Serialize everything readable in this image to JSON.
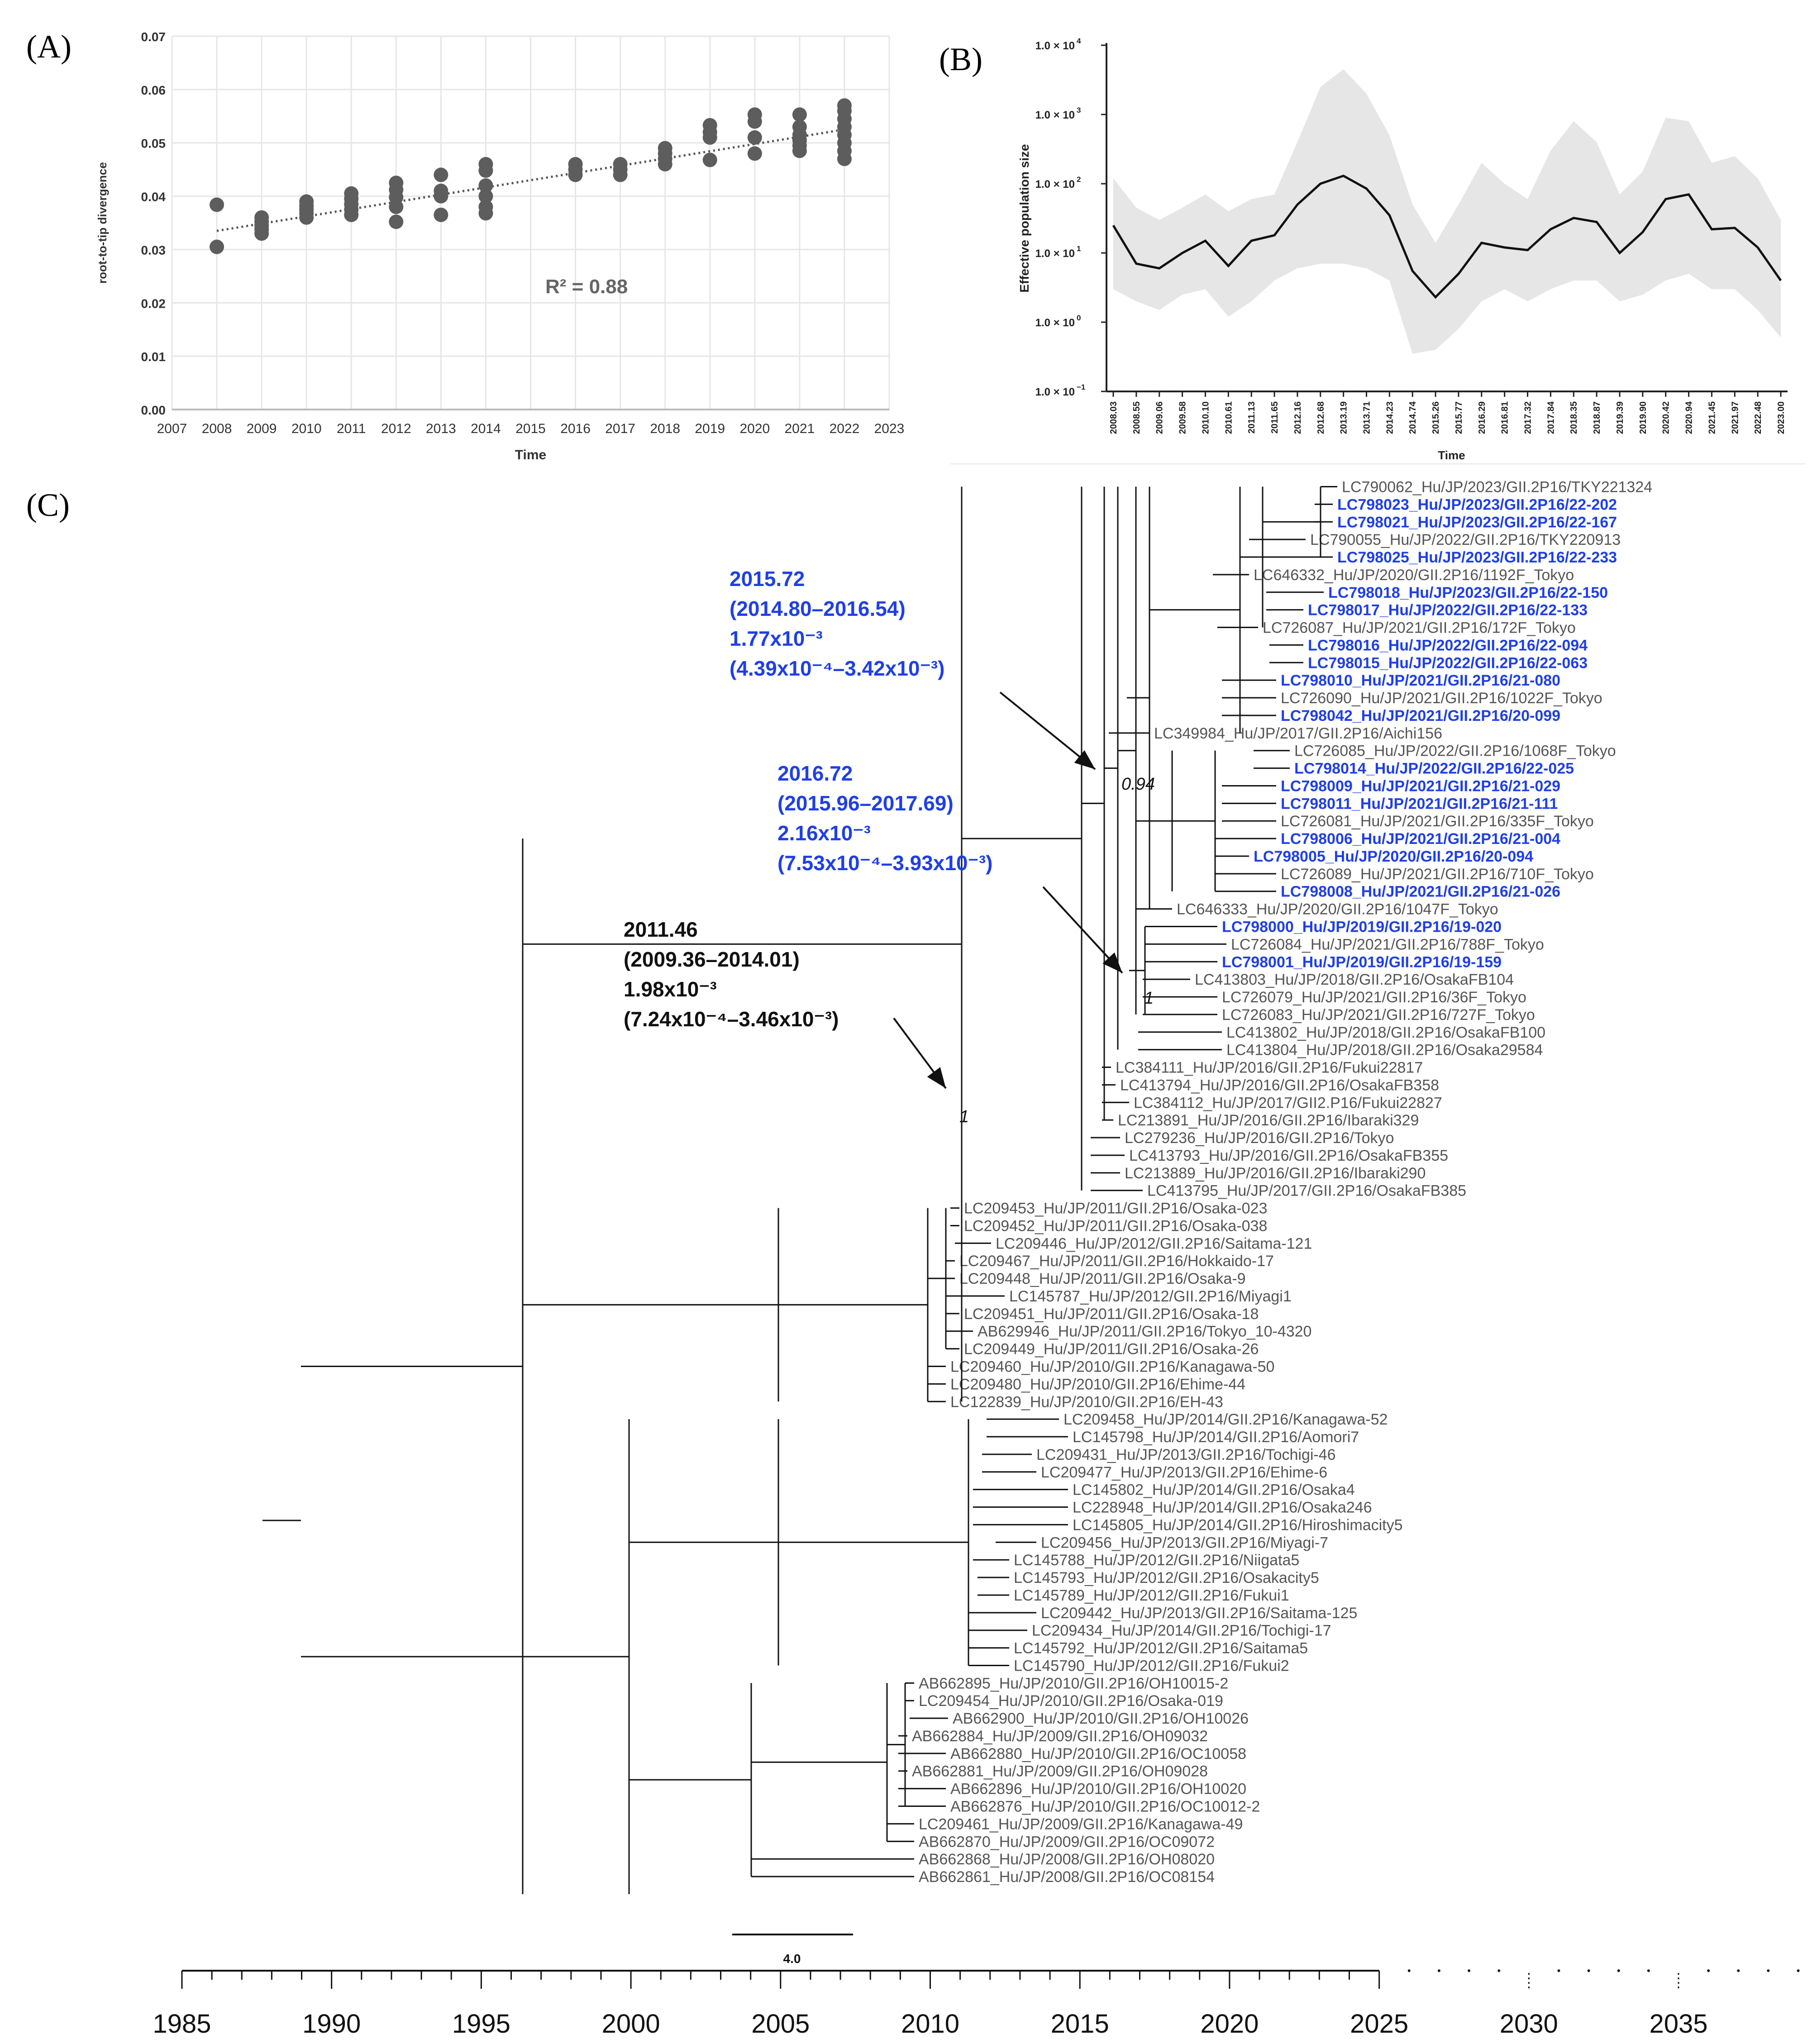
{
  "panel_labels": {
    "a": "(A)",
    "b": "(B)",
    "c": "(C)"
  },
  "chart_data": [
    {
      "panel": "A",
      "type": "scatter",
      "xlabel": "Time",
      "ylabel": "root-to-tip divergence",
      "annotation": "R² = 0.88",
      "xlim": [
        2007,
        2023
      ],
      "ylim": [
        0,
        0.07
      ],
      "xticks": [
        2007,
        2008,
        2009,
        2010,
        2011,
        2012,
        2013,
        2014,
        2015,
        2016,
        2017,
        2018,
        2019,
        2020,
        2021,
        2022,
        2023
      ],
      "yticks": [
        0.0,
        0.01,
        0.02,
        0.03,
        0.04,
        0.05,
        0.06,
        0.07
      ],
      "ytick_labels": [
        "0.00",
        "0.01",
        "0.02",
        "0.03",
        "0.04",
        "0.05",
        "0.06",
        "0.07"
      ],
      "trendline": [
        [
          2008,
          0.0335
        ],
        [
          2022,
          0.0525
        ]
      ],
      "points": [
        [
          2008,
          0.0384
        ],
        [
          2008,
          0.0305
        ],
        [
          2009,
          0.036
        ],
        [
          2009,
          0.0352
        ],
        [
          2009,
          0.0345
        ],
        [
          2009,
          0.0338
        ],
        [
          2009,
          0.033
        ],
        [
          2010,
          0.039
        ],
        [
          2010,
          0.0382
        ],
        [
          2010,
          0.0375
        ],
        [
          2010,
          0.0368
        ],
        [
          2010,
          0.036
        ],
        [
          2011,
          0.0405
        ],
        [
          2011,
          0.0395
        ],
        [
          2011,
          0.0385
        ],
        [
          2011,
          0.0375
        ],
        [
          2011,
          0.0365
        ],
        [
          2012,
          0.0425
        ],
        [
          2012,
          0.0412
        ],
        [
          2012,
          0.0398
        ],
        [
          2012,
          0.038
        ],
        [
          2012,
          0.0352
        ],
        [
          2013,
          0.044
        ],
        [
          2013,
          0.041
        ],
        [
          2013,
          0.04
        ],
        [
          2013,
          0.0365
        ],
        [
          2014,
          0.046
        ],
        [
          2014,
          0.0448
        ],
        [
          2014,
          0.042
        ],
        [
          2014,
          0.04
        ],
        [
          2014,
          0.038
        ],
        [
          2014,
          0.0368
        ],
        [
          2016,
          0.046
        ],
        [
          2016,
          0.045
        ],
        [
          2016,
          0.044
        ],
        [
          2017,
          0.046
        ],
        [
          2017,
          0.045
        ],
        [
          2017,
          0.044
        ],
        [
          2018,
          0.049
        ],
        [
          2018,
          0.048
        ],
        [
          2018,
          0.047
        ],
        [
          2018,
          0.046
        ],
        [
          2019,
          0.0533
        ],
        [
          2019,
          0.052
        ],
        [
          2019,
          0.051
        ],
        [
          2019,
          0.0468
        ],
        [
          2020,
          0.0553
        ],
        [
          2020,
          0.054
        ],
        [
          2020,
          0.051
        ],
        [
          2020,
          0.048
        ],
        [
          2021,
          0.0553
        ],
        [
          2021,
          0.053
        ],
        [
          2021,
          0.0515
        ],
        [
          2021,
          0.0505
        ],
        [
          2021,
          0.0495
        ],
        [
          2021,
          0.0485
        ],
        [
          2022,
          0.057
        ],
        [
          2022,
          0.056
        ],
        [
          2022,
          0.0545
        ],
        [
          2022,
          0.053
        ],
        [
          2022,
          0.0515
        ],
        [
          2022,
          0.05
        ],
        [
          2022,
          0.0485
        ],
        [
          2022,
          0.047
        ]
      ]
    },
    {
      "panel": "B",
      "type": "area",
      "xlabel": "Time",
      "ylabel": "Effective population size",
      "yscale": "log",
      "ylim": [
        0.1,
        10000
      ],
      "yticks": [
        0.1,
        1,
        10,
        100,
        1000,
        10000
      ],
      "ytick_mant": [
        "1.0 × 10",
        "1.0 × 10",
        "1.0 × 10",
        "1.0 × 10",
        "1.0 × 10",
        "1.0 × 10"
      ],
      "ytick_exp": [
        "−1",
        "0",
        "1",
        "2",
        "3",
        "4"
      ],
      "x_tick_labels": [
        "2008.03",
        "2008.55",
        "2009.06",
        "2009.58",
        "2010.10",
        "2010.61",
        "2011.13",
        "2011.65",
        "2012.16",
        "2012.68",
        "2013.19",
        "2013.71",
        "2014.23",
        "2014.74",
        "2015.26",
        "2015.77",
        "2016.29",
        "2016.81",
        "2017.32",
        "2017.84",
        "2018.35",
        "2018.87",
        "2019.39",
        "2019.90",
        "2020.42",
        "2020.94",
        "2021.45",
        "2021.97",
        "2022.48",
        "2023.00"
      ],
      "median": [
        25,
        7,
        6,
        10,
        15,
        6.5,
        15,
        18,
        50,
        100,
        130,
        85,
        35,
        5.5,
        2.3,
        5,
        14,
        12,
        11,
        22,
        32,
        28,
        10,
        20,
        60,
        70,
        22,
        23,
        12,
        4
      ],
      "lower": [
        3,
        2,
        1.5,
        2.5,
        3,
        1.2,
        2,
        4,
        6,
        7,
        7,
        6,
        4,
        0.35,
        0.4,
        0.8,
        2,
        3,
        2,
        3,
        4,
        4,
        2,
        2.5,
        4,
        5,
        3,
        3,
        1.5,
        0.6
      ],
      "upper": [
        120,
        45,
        30,
        45,
        70,
        40,
        60,
        70,
        400,
        2500,
        4500,
        2000,
        500,
        50,
        14,
        50,
        200,
        100,
        60,
        300,
        800,
        400,
        70,
        150,
        900,
        800,
        200,
        250,
        120,
        30
      ]
    },
    {
      "panel": "C",
      "type": "tree",
      "scale_bar_label": "4.0",
      "time_axis": {
        "ticks": [
          "1985",
          "1990",
          "1995",
          "2000",
          "2005",
          "2010",
          "2015",
          "2020",
          "2025",
          "2030",
          "2035"
        ]
      },
      "node_annotations": [
        {
          "lines": [
            "2015.72",
            "(2014.80–2016.54)",
            "1.77x10⁻³",
            "(4.39x10⁻⁴–3.42x10⁻³)"
          ],
          "color": "#1f3fe6"
        },
        {
          "lines": [
            "2016.72",
            "(2015.96–2017.69)",
            "2.16x10⁻³",
            "(7.53x10⁻⁴–3.93x10⁻³)"
          ],
          "color": "#1f3fe6"
        },
        {
          "lines": [
            "2011.46",
            "(2009.36–2014.01)",
            "1.98x10⁻³",
            "(7.24x10⁻⁴–3.46x10⁻³)"
          ],
          "color": "#111111"
        }
      ],
      "support_values": [
        "0.94",
        "1",
        "1"
      ],
      "tips": [
        {
          "label": "LC790062_Hu/JP/2023/GII.2P16/TKY221324",
          "blue": false
        },
        {
          "label": "LC798023_Hu/JP/2023/GII.2P16/22-202",
          "blue": true
        },
        {
          "label": "LC798021_Hu/JP/2023/GII.2P16/22-167",
          "blue": true
        },
        {
          "label": "LC790055_Hu/JP/2022/GII.2P16/TKY220913",
          "blue": false
        },
        {
          "label": "LC798025_Hu/JP/2023/GII.2P16/22-233",
          "blue": true
        },
        {
          "label": "LC646332_Hu/JP/2020/GII.2P16/1192F_Tokyo",
          "blue": false
        },
        {
          "label": "LC798018_Hu/JP/2023/GII.2P16/22-150",
          "blue": true
        },
        {
          "label": "LC798017_Hu/JP/2022/GII.2P16/22-133",
          "blue": true
        },
        {
          "label": "LC726087_Hu/JP/2021/GII.2P16/172F_Tokyo",
          "blue": false
        },
        {
          "label": "LC798016_Hu/JP/2022/GII.2P16/22-094",
          "blue": true
        },
        {
          "label": "LC798015_Hu/JP/2022/GII.2P16/22-063",
          "blue": true
        },
        {
          "label": "LC798010_Hu/JP/2021/GII.2P16/21-080",
          "blue": true
        },
        {
          "label": "LC726090_Hu/JP/2021/GII.2P16/1022F_Tokyo",
          "blue": false
        },
        {
          "label": "LC798042_Hu/JP/2021/GII.2P16/20-099",
          "blue": true
        },
        {
          "label": "LC349984_Hu/JP/2017/GII.2P16/Aichi156",
          "blue": false
        },
        {
          "label": "LC726085_Hu/JP/2022/GII.2P16/1068F_Tokyo",
          "blue": false
        },
        {
          "label": "LC798014_Hu/JP/2022/GII.2P16/22-025",
          "blue": true
        },
        {
          "label": "LC798009_Hu/JP/2021/GII.2P16/21-029",
          "blue": true
        },
        {
          "label": "LC798011_Hu/JP/2021/GII.2P16/21-111",
          "blue": true
        },
        {
          "label": "LC726081_Hu/JP/2021/GII.2P16/335F_Tokyo",
          "blue": false
        },
        {
          "label": "LC798006_Hu/JP/2021/GII.2P16/21-004",
          "blue": true
        },
        {
          "label": "LC798005_Hu/JP/2020/GII.2P16/20-094",
          "blue": true
        },
        {
          "label": "LC726089_Hu/JP/2021/GII.2P16/710F_Tokyo",
          "blue": false
        },
        {
          "label": "LC798008_Hu/JP/2021/GII.2P16/21-026",
          "blue": true
        },
        {
          "label": "LC646333_Hu/JP/2020/GII.2P16/1047F_Tokyo",
          "blue": false
        },
        {
          "label": "LC798000_Hu/JP/2019/GII.2P16/19-020",
          "blue": true
        },
        {
          "label": "LC726084_Hu/JP/2021/GII.2P16/788F_Tokyo",
          "blue": false
        },
        {
          "label": "LC798001_Hu/JP/2019/GII.2P16/19-159",
          "blue": true
        },
        {
          "label": "LC413803_Hu/JP/2018/GII.2P16/OsakaFB104",
          "blue": false
        },
        {
          "label": "LC726079_Hu/JP/2021/GII.2P16/36F_Tokyo",
          "blue": false
        },
        {
          "label": "LC726083_Hu/JP/2021/GII.2P16/727F_Tokyo",
          "blue": false
        },
        {
          "label": "LC413802_Hu/JP/2018/GII.2P16/OsakaFB100",
          "blue": false
        },
        {
          "label": "LC413804_Hu/JP/2018/GII.2P16/Osaka29584",
          "blue": false
        },
        {
          "label": "LC384111_Hu/JP/2016/GII.2P16/Fukui22817",
          "blue": false
        },
        {
          "label": "LC413794_Hu/JP/2016/GII.2P16/OsakaFB358",
          "blue": false
        },
        {
          "label": "LC384112_Hu/JP/2017/GII2.P16/Fukui22827",
          "blue": false
        },
        {
          "label": "LC213891_Hu/JP/2016/GII.2P16/Ibaraki329",
          "blue": false
        },
        {
          "label": "LC279236_Hu/JP/2016/GII.2P16/Tokyo",
          "blue": false
        },
        {
          "label": "LC413793_Hu/JP/2016/GII.2P16/OsakaFB355",
          "blue": false
        },
        {
          "label": "LC213889_Hu/JP/2016/GII.2P16/Ibaraki290",
          "blue": false
        },
        {
          "label": "LC413795_Hu/JP/2017/GII.2P16/OsakaFB385",
          "blue": false
        },
        {
          "label": "LC209453_Hu/JP/2011/GII.2P16/Osaka-023",
          "blue": false
        },
        {
          "label": "LC209452_Hu/JP/2011/GII.2P16/Osaka-038",
          "blue": false
        },
        {
          "label": "LC209446_Hu/JP/2012/GII.2P16/Saitama-121",
          "blue": false
        },
        {
          "label": "LC209467_Hu/JP/2011/GII.2P16/Hokkaido-17",
          "blue": false
        },
        {
          "label": "LC209448_Hu/JP/2011/GII.2P16/Osaka-9",
          "blue": false
        },
        {
          "label": "LC145787_Hu/JP/2012/GII.2P16/Miyagi1",
          "blue": false
        },
        {
          "label": "LC209451_Hu/JP/2011/GII.2P16/Osaka-18",
          "blue": false
        },
        {
          "label": "AB629946_Hu/JP/2011/GII.2P16/Tokyo_10-4320",
          "blue": false
        },
        {
          "label": "LC209449_Hu/JP/2011/GII.2P16/Osaka-26",
          "blue": false
        },
        {
          "label": "LC209460_Hu/JP/2010/GII.2P16/Kanagawa-50",
          "blue": false
        },
        {
          "label": "LC209480_Hu/JP/2010/GII.2P16/Ehime-44",
          "blue": false
        },
        {
          "label": "LC122839_Hu/JP/2010/GII.2P16/EH-43",
          "blue": false
        },
        {
          "label": "LC209458_Hu/JP/2014/GII.2P16/Kanagawa-52",
          "blue": false
        },
        {
          "label": "LC145798_Hu/JP/2014/GII.2P16/Aomori7",
          "blue": false
        },
        {
          "label": "LC209431_Hu/JP/2013/GII.2P16/Tochigi-46",
          "blue": false
        },
        {
          "label": "LC209477_Hu/JP/2013/GII.2P16/Ehime-6",
          "blue": false
        },
        {
          "label": "LC145802_Hu/JP/2014/GII.2P16/Osaka4",
          "blue": false
        },
        {
          "label": "LC228948_Hu/JP/2014/GII.2P16/Osaka246",
          "blue": false
        },
        {
          "label": "LC145805_Hu/JP/2014/GII.2P16/Hiroshimacity5",
          "blue": false
        },
        {
          "label": "LC209456_Hu/JP/2013/GII.2P16/Miyagi-7",
          "blue": false
        },
        {
          "label": "LC145788_Hu/JP/2012/GII.2P16/Niigata5",
          "blue": false
        },
        {
          "label": "LC145793_Hu/JP/2012/GII.2P16/Osakacity5",
          "blue": false
        },
        {
          "label": "LC145789_Hu/JP/2012/GII.2P16/Fukui1",
          "blue": false
        },
        {
          "label": "LC209442_Hu/JP/2013/GII.2P16/Saitama-125",
          "blue": false
        },
        {
          "label": "LC209434_Hu/JP/2014/GII.2P16/Tochigi-17",
          "blue": false
        },
        {
          "label": "LC145792_Hu/JP/2012/GII.2P16/Saitama5",
          "blue": false
        },
        {
          "label": "LC145790_Hu/JP/2012/GII.2P16/Fukui2",
          "blue": false
        },
        {
          "label": "AB662895_Hu/JP/2010/GII.2P16/OH10015-2",
          "blue": false
        },
        {
          "label": "LC209454_Hu/JP/2010/GII.2P16/Osaka-019",
          "blue": false
        },
        {
          "label": "AB662900_Hu/JP/2010/GII.2P16/OH10026",
          "blue": false
        },
        {
          "label": "AB662884_Hu/JP/2009/GII.2P16/OH09032",
          "blue": false
        },
        {
          "label": "AB662880_Hu/JP/2010/GII.2P16/OC10058",
          "blue": false
        },
        {
          "label": "AB662881_Hu/JP/2009/GII.2P16/OH09028",
          "blue": false
        },
        {
          "label": "AB662896_Hu/JP/2010/GII.2P16/OH10020",
          "blue": false
        },
        {
          "label": "AB662876_Hu/JP/2010/GII.2P16/OC10012-2",
          "blue": false
        },
        {
          "label": "LC209461_Hu/JP/2009/GII.2P16/Kanagawa-49",
          "blue": false
        },
        {
          "label": "AB662870_Hu/JP/2009/GII.2P16/OC09072",
          "blue": false
        },
        {
          "label": "AB662868_Hu/JP/2008/GII.2P16/OH08020",
          "blue": false
        },
        {
          "label": "AB662861_Hu/JP/2008/GII.2P16/OC08154",
          "blue": false
        }
      ]
    }
  ]
}
